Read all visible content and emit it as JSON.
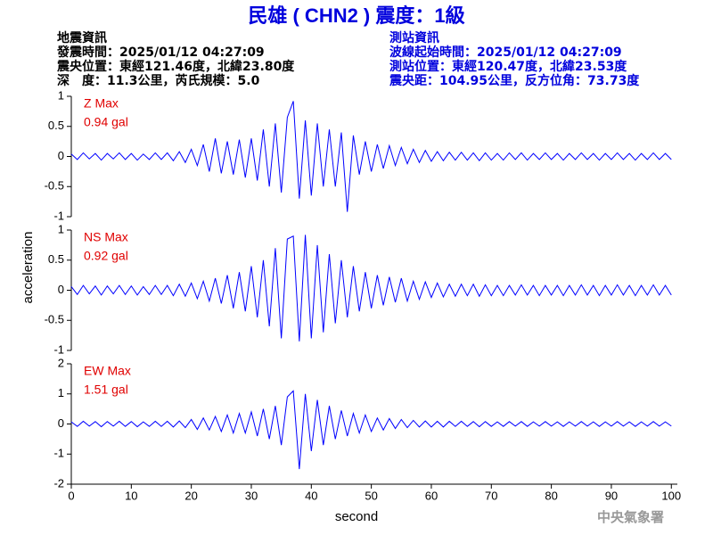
{
  "header": {
    "title": "民雄 ( CHN2 ) 震度：1級",
    "event_info": [
      "地震資訊",
      "發震時間：2025/01/12 04:27:09",
      "震央位置：東經121.46度，北緯23.80度",
      "深　度：11.3公里，芮氏規模：5.0"
    ],
    "station_info": [
      "測站資訊",
      "波線起始時間：2025/01/12 04:27:09",
      "測站位置：東經120.47度，北緯23.53度",
      "震央距：104.95公里，反方位角：73.73度"
    ],
    "watermark": "中央氣象署"
  },
  "chart_data": [
    {
      "type": "line",
      "label": "Z Max",
      "max_label": "0.94 gal",
      "xlim": [
        0,
        101
      ],
      "ylim": [
        -1,
        1
      ],
      "yticks": [
        -1,
        -0.5,
        0,
        0.5,
        1
      ],
      "x": [
        0,
        1,
        2,
        3,
        4,
        5,
        6,
        7,
        8,
        9,
        10,
        11,
        12,
        13,
        14,
        15,
        16,
        17,
        18,
        19,
        20,
        21,
        22,
        23,
        24,
        25,
        26,
        27,
        28,
        29,
        30,
        31,
        32,
        33,
        34,
        35,
        36,
        37,
        38,
        39,
        40,
        41,
        42,
        43,
        44,
        45,
        46,
        47,
        48,
        49,
        50,
        51,
        52,
        53,
        54,
        55,
        56,
        57,
        58,
        59,
        60,
        61,
        62,
        63,
        64,
        65,
        66,
        67,
        68,
        69,
        70,
        71,
        72,
        73,
        74,
        75,
        76,
        77,
        78,
        79,
        80,
        81,
        82,
        83,
        84,
        85,
        86,
        87,
        88,
        89,
        90,
        91,
        92,
        93,
        94,
        95,
        96,
        97,
        98,
        99,
        100
      ],
      "series": [
        {
          "color": "#0000ff",
          "values": [
            0.04,
            -0.05,
            0.06,
            -0.04,
            0.05,
            -0.06,
            0.05,
            -0.04,
            0.06,
            -0.05,
            0.05,
            -0.06,
            0.04,
            -0.05,
            0.06,
            -0.05,
            0.06,
            -0.07,
            0.08,
            -0.1,
            0.12,
            -0.15,
            0.2,
            -0.25,
            0.3,
            -0.28,
            0.25,
            -0.3,
            0.28,
            -0.35,
            0.3,
            -0.4,
            0.45,
            -0.5,
            0.55,
            -0.6,
            0.65,
            0.92,
            -0.7,
            0.6,
            -0.65,
            0.55,
            -0.5,
            0.45,
            -0.5,
            0.4,
            -0.92,
            0.35,
            -0.3,
            0.25,
            -0.25,
            0.2,
            -0.2,
            0.18,
            -0.15,
            0.15,
            -0.12,
            0.12,
            -0.1,
            0.1,
            -0.08,
            0.08,
            -0.07,
            0.07,
            -0.06,
            0.07,
            -0.06,
            0.06,
            -0.07,
            0.06,
            -0.06,
            0.05,
            -0.06,
            0.06,
            -0.05,
            0.06,
            -0.06,
            0.05,
            -0.05,
            0.06,
            -0.05,
            0.05,
            -0.06,
            0.05,
            -0.05,
            0.06,
            -0.05,
            0.05,
            -0.06,
            0.05,
            -0.05,
            0.06,
            -0.05,
            0.05,
            -0.06,
            0.05,
            -0.05,
            0.06,
            -0.05,
            0.05,
            -0.05
          ]
        }
      ]
    },
    {
      "type": "line",
      "label": "NS Max",
      "max_label": "0.92 gal",
      "ylabel": "acceleration",
      "xlim": [
        0,
        101
      ],
      "ylim": [
        -1,
        1
      ],
      "yticks": [
        -1,
        -0.5,
        0,
        0.5,
        1
      ],
      "x": [
        0,
        1,
        2,
        3,
        4,
        5,
        6,
        7,
        8,
        9,
        10,
        11,
        12,
        13,
        14,
        15,
        16,
        17,
        18,
        19,
        20,
        21,
        22,
        23,
        24,
        25,
        26,
        27,
        28,
        29,
        30,
        31,
        32,
        33,
        34,
        35,
        36,
        37,
        38,
        39,
        40,
        41,
        42,
        43,
        44,
        45,
        46,
        47,
        48,
        49,
        50,
        51,
        52,
        53,
        54,
        55,
        56,
        57,
        58,
        59,
        60,
        61,
        62,
        63,
        64,
        65,
        66,
        67,
        68,
        69,
        70,
        71,
        72,
        73,
        74,
        75,
        76,
        77,
        78,
        79,
        80,
        81,
        82,
        83,
        84,
        85,
        86,
        87,
        88,
        89,
        90,
        91,
        92,
        93,
        94,
        95,
        96,
        97,
        98,
        99,
        100
      ],
      "series": [
        {
          "color": "#0000ff",
          "values": [
            0.06,
            -0.07,
            0.08,
            -0.06,
            0.07,
            -0.08,
            0.07,
            -0.06,
            0.08,
            -0.07,
            0.07,
            -0.08,
            0.06,
            -0.07,
            0.08,
            -0.07,
            0.08,
            -0.09,
            0.1,
            -0.1,
            0.12,
            -0.14,
            0.15,
            -0.18,
            0.2,
            -0.22,
            0.25,
            -0.3,
            0.3,
            -0.35,
            0.4,
            -0.45,
            0.5,
            -0.6,
            0.7,
            -0.8,
            0.85,
            0.9,
            -0.85,
            0.92,
            -0.8,
            0.75,
            -0.7,
            0.6,
            -0.55,
            0.5,
            -0.45,
            0.4,
            -0.35,
            0.3,
            -0.3,
            0.25,
            -0.25,
            0.22,
            -0.2,
            0.2,
            -0.18,
            0.15,
            -0.15,
            0.14,
            -0.12,
            0.12,
            -0.11,
            0.1,
            -0.1,
            0.1,
            -0.09,
            0.1,
            -0.1,
            0.09,
            -0.09,
            0.08,
            -0.09,
            0.08,
            -0.08,
            0.09,
            -0.08,
            0.08,
            -0.09,
            0.08,
            -0.08,
            0.08,
            -0.09,
            0.08,
            -0.08,
            0.09,
            -0.08,
            0.08,
            -0.09,
            0.08,
            -0.08,
            0.09,
            -0.08,
            0.08,
            -0.09,
            0.08,
            -0.08,
            0.09,
            -0.08,
            0.08,
            -0.08
          ]
        }
      ]
    },
    {
      "type": "line",
      "label": "EW Max",
      "max_label": "1.51 gal",
      "xlabel": "second",
      "xlim": [
        0,
        101
      ],
      "ylim": [
        -2,
        2
      ],
      "yticks": [
        -2,
        -1,
        0,
        1,
        2
      ],
      "xticks": [
        0,
        10,
        20,
        30,
        40,
        50,
        60,
        70,
        80,
        90,
        100
      ],
      "x": [
        0,
        1,
        2,
        3,
        4,
        5,
        6,
        7,
        8,
        9,
        10,
        11,
        12,
        13,
        14,
        15,
        16,
        17,
        18,
        19,
        20,
        21,
        22,
        23,
        24,
        25,
        26,
        27,
        28,
        29,
        30,
        31,
        32,
        33,
        34,
        35,
        36,
        37,
        38,
        39,
        40,
        41,
        42,
        43,
        44,
        45,
        46,
        47,
        48,
        49,
        50,
        51,
        52,
        53,
        54,
        55,
        56,
        57,
        58,
        59,
        60,
        61,
        62,
        63,
        64,
        65,
        66,
        67,
        68,
        69,
        70,
        71,
        72,
        73,
        74,
        75,
        76,
        77,
        78,
        79,
        80,
        81,
        82,
        83,
        84,
        85,
        86,
        87,
        88,
        89,
        90,
        91,
        92,
        93,
        94,
        95,
        96,
        97,
        98,
        99,
        100
      ],
      "series": [
        {
          "color": "#0000ff",
          "values": [
            0.07,
            -0.08,
            0.09,
            -0.07,
            0.08,
            -0.09,
            0.08,
            -0.07,
            0.09,
            -0.08,
            0.08,
            -0.09,
            0.07,
            -0.08,
            0.09,
            -0.08,
            0.09,
            -0.1,
            0.1,
            -0.12,
            0.15,
            -0.18,
            0.2,
            -0.2,
            0.25,
            -0.25,
            0.3,
            -0.3,
            0.35,
            -0.3,
            0.4,
            -0.4,
            0.5,
            -0.5,
            0.6,
            -0.7,
            0.9,
            1.1,
            -1.5,
            1.0,
            -0.9,
            0.8,
            -0.7,
            0.6,
            -0.5,
            0.45,
            -0.4,
            0.35,
            -0.3,
            0.3,
            -0.25,
            0.2,
            -0.2,
            0.18,
            -0.15,
            0.15,
            -0.12,
            0.12,
            -0.1,
            0.1,
            -0.1,
            0.09,
            -0.1,
            0.09,
            -0.08,
            0.09,
            -0.08,
            0.08,
            -0.09,
            0.08,
            -0.08,
            0.07,
            -0.08,
            0.08,
            -0.07,
            0.08,
            -0.08,
            0.07,
            -0.07,
            0.08,
            -0.07,
            0.07,
            -0.08,
            0.07,
            -0.07,
            0.08,
            -0.07,
            0.07,
            -0.08,
            0.07,
            -0.07,
            0.08,
            -0.07,
            0.07,
            -0.08,
            0.07,
            -0.07,
            0.08,
            -0.07,
            0.07,
            -0.07
          ]
        }
      ]
    }
  ]
}
